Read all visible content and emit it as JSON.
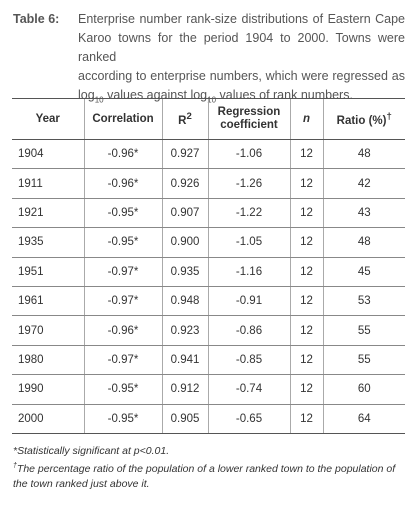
{
  "caption": {
    "label": "Table 6:",
    "lines": [
      "Enterprise number rank-size distributions of Eastern Cape",
      "Karoo towns for the period 1904 to 2000. Towns were ranked",
      "according to enterprise numbers, which were regressed as"
    ],
    "line4_a": "log",
    "line4_sub1": "10",
    "line4_b": " values against log",
    "line4_sub2": "10",
    "line4_c": " values of rank numbers."
  },
  "table": {
    "headers": {
      "year": "Year",
      "correlation": "Correlation",
      "r2_base": "R",
      "r2_sup": "2",
      "regression_line1": "Regression",
      "regression_line2": "coefficient",
      "n": "n",
      "ratio_base": "Ratio (%)",
      "ratio_sup": "†"
    },
    "rows": [
      {
        "year": "1904",
        "correlation": "-0.96*",
        "r2": "0.927",
        "regression": "-1.06",
        "n": "12",
        "ratio": "48"
      },
      {
        "year": "1911",
        "correlation": "-0.96*",
        "r2": "0.926",
        "regression": "-1.26",
        "n": "12",
        "ratio": "42"
      },
      {
        "year": "1921",
        "correlation": "-0.95*",
        "r2": "0.907",
        "regression": "-1.22",
        "n": "12",
        "ratio": "43"
      },
      {
        "year": "1935",
        "correlation": "-0.95*",
        "r2": "0.900",
        "regression": "-1.05",
        "n": "12",
        "ratio": "48"
      },
      {
        "year": "1951",
        "correlation": "-0.97*",
        "r2": "0.935",
        "regression": "-1.16",
        "n": "12",
        "ratio": "45"
      },
      {
        "year": "1961",
        "correlation": "-0.97*",
        "r2": "0.948",
        "regression": "-0.91",
        "n": "12",
        "ratio": "53"
      },
      {
        "year": "1970",
        "correlation": "-0.96*",
        "r2": "0.923",
        "regression": "-0.86",
        "n": "12",
        "ratio": "55"
      },
      {
        "year": "1980",
        "correlation": "-0.97*",
        "r2": "0.941",
        "regression": "-0.85",
        "n": "12",
        "ratio": "55"
      },
      {
        "year": "1990",
        "correlation": "-0.95*",
        "r2": "0.912",
        "regression": "-0.74",
        "n": "12",
        "ratio": "60"
      },
      {
        "year": "2000",
        "correlation": "-0.95*",
        "r2": "0.905",
        "regression": "-0.65",
        "n": "12",
        "ratio": "64"
      }
    ]
  },
  "footnotes": {
    "significance": "*Statistically significant at p<0.01.",
    "ratio_mark": "†",
    "ratio_note": "The percentage ratio of the population of a lower ranked town to the population of the town ranked just above it."
  }
}
